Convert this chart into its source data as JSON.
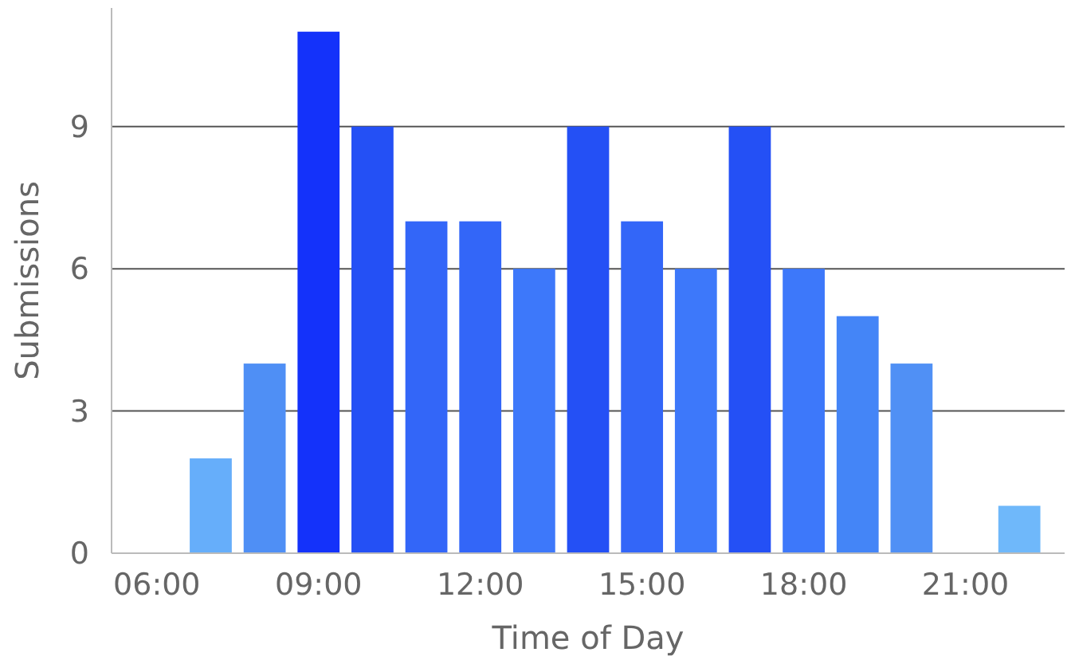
{
  "chart_data": {
    "type": "bar",
    "xlabel": "Time of Day",
    "ylabel": "Submissions",
    "categories": [
      "06:00",
      null,
      null,
      "09:00",
      null,
      null,
      "12:00",
      null,
      null,
      "15:00",
      null,
      null,
      "18:00",
      null,
      null,
      "21:00",
      null
    ],
    "values": [
      0,
      2,
      4,
      11,
      9,
      7,
      7,
      6,
      9,
      7,
      6,
      9,
      6,
      5,
      4,
      0,
      1
    ],
    "colors": [
      "#6fb8fa",
      "#66aefa",
      "#4f8ff5",
      "#1432fa",
      "#2450f5",
      "#3366f8",
      "#3366f8",
      "#3d78fa",
      "#2450f5",
      "#3366f8",
      "#3d78fa",
      "#2450f5",
      "#3d78fa",
      "#4485f7",
      "#5090f5",
      "#6fb8fa",
      "#6fb8fa"
    ],
    "ylim": [
      0,
      11.5
    ],
    "yticks": [
      0,
      3,
      6,
      9
    ],
    "grid": "y"
  }
}
